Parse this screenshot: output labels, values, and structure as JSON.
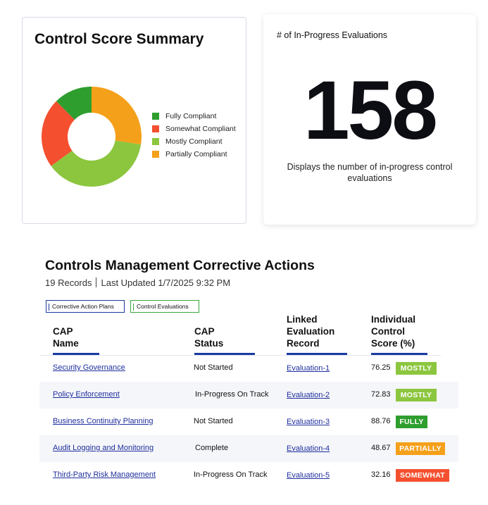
{
  "summary": {
    "title": "Control Score Summary",
    "chart_data": {
      "type": "pie",
      "style": "donut",
      "categories": [
        "Fully Compliant",
        "Somewhat Compliant",
        "Mostly Compliant",
        "Partially Compliant"
      ],
      "values": [
        12.5,
        22.5,
        37.5,
        27.5
      ],
      "colors": [
        "#2e9e2e",
        "#f4502f",
        "#8cc63f",
        "#f5a01a"
      ]
    },
    "legend": [
      {
        "label": "Fully Compliant",
        "color": "#2e9e2e"
      },
      {
        "label": "Somewhat Compliant",
        "color": "#f4502f"
      },
      {
        "label": "Mostly Compliant",
        "color": "#8cc63f"
      },
      {
        "label": "Partially Compliant",
        "color": "#f5a01a"
      }
    ]
  },
  "count_card": {
    "title": "# of In-Progress Evaluations",
    "value": "158",
    "description": "Displays the number of in-progress control evaluations"
  },
  "section": {
    "title": "Controls Management Corrective Actions",
    "records": "19 Records",
    "updated": "Last Updated 1/7/2025 9:32 PM",
    "tabs": [
      "Corrective Action Plans",
      "Control Evaluations"
    ]
  },
  "table": {
    "headers": {
      "cap_name": [
        "CAP",
        "Name"
      ],
      "cap_status": [
        "CAP",
        "Status"
      ],
      "linked": [
        "Linked",
        "Evaluation",
        "Record"
      ],
      "score": [
        "Individual",
        "Control",
        "Score (%)"
      ]
    },
    "rows": [
      {
        "name": "Security Governance",
        "status": "Not Started",
        "record": "Evaluation-1",
        "score": "76.25",
        "badge": "MOSTLY",
        "badge_color": "#8cc63f"
      },
      {
        "name": "Policy Enforcement",
        "status": "In-Progress On Track",
        "record": "Evaluation-2",
        "score": "72.83",
        "badge": "MOSTLY",
        "badge_color": "#8cc63f"
      },
      {
        "name": "Business Continuity Planning",
        "status": "Not Started",
        "record": "Evaluation-3",
        "score": "88.76",
        "badge": "FULLY",
        "badge_color": "#2e9e2e"
      },
      {
        "name": "Audit Logging and Monitoring",
        "status": "Complete",
        "record": "Evaluation-4",
        "score": "48.67",
        "badge": "PARTIALLY",
        "badge_color": "#f5a01a"
      },
      {
        "name": "Third-Party Risk Management",
        "status": "In-Progress On Track",
        "record": "Evaluation-5",
        "score": "32.16",
        "badge": "SOMEWHAT",
        "badge_color": "#f4502f"
      }
    ]
  }
}
